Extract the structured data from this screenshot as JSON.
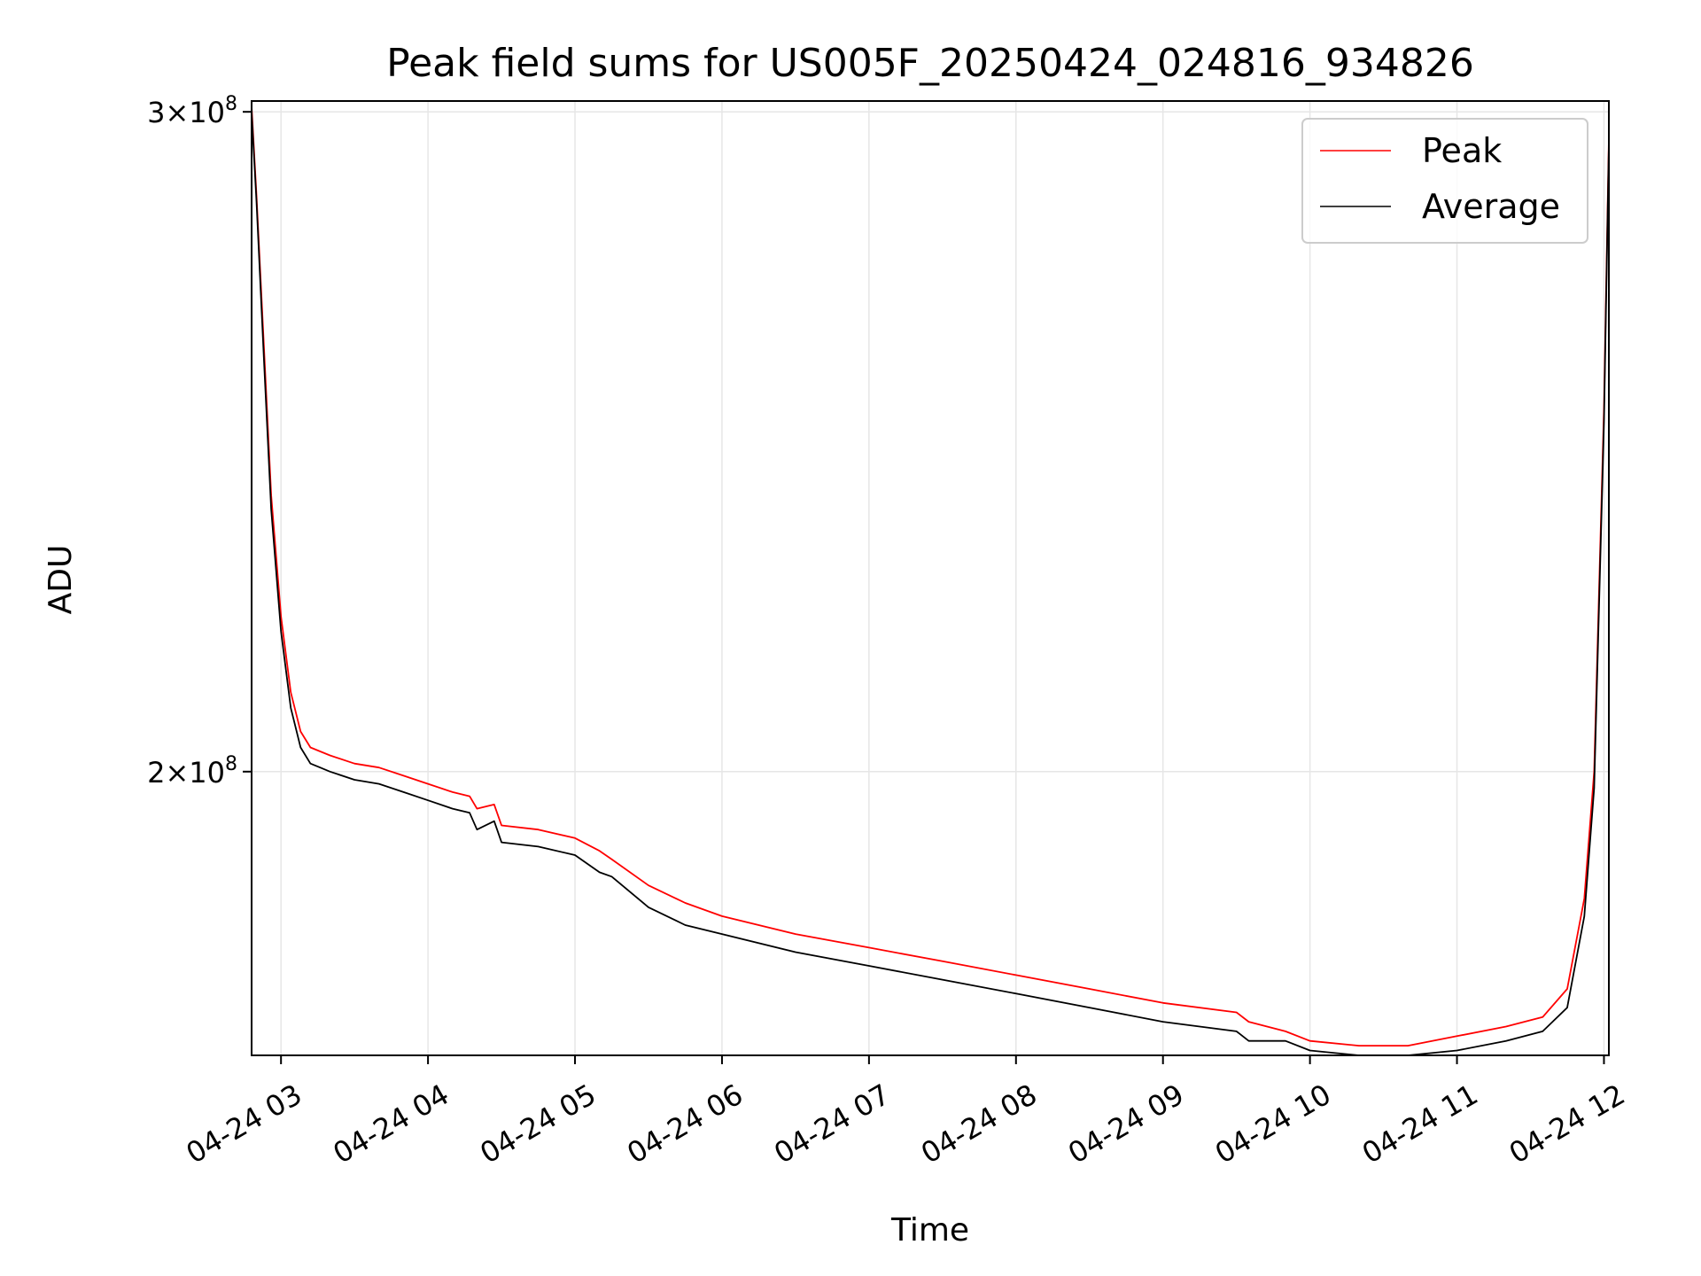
{
  "chart_data": {
    "type": "line",
    "title": "Peak field sums for US005F_20250424_024816_934826",
    "xlabel": "Time",
    "ylabel": "ADU",
    "y_scale": "log",
    "xlim": [
      "2025-04-24 02:48",
      "2025-04-24 12:02"
    ],
    "ylim": [
      168000000,
      302000000
    ],
    "grid": true,
    "legend_position": "top-right",
    "x_ticks": [
      "04-24 03",
      "04-24 04",
      "04-24 05",
      "04-24 06",
      "04-24 07",
      "04-24 08",
      "04-24 09",
      "04-24 10",
      "04-24 11",
      "04-24 12"
    ],
    "x_tick_times": [
      "2025-04-24 03:00",
      "2025-04-24 04:00",
      "2025-04-24 05:00",
      "2025-04-24 06:00",
      "2025-04-24 07:00",
      "2025-04-24 08:00",
      "2025-04-24 09:00",
      "2025-04-24 10:00",
      "2025-04-24 11:00",
      "2025-04-24 12:00"
    ],
    "y_ticks": [
      {
        "value": 300000000,
        "base": "3",
        "exp": "8"
      },
      {
        "value": 200000000,
        "base": "2",
        "exp": "8"
      }
    ],
    "series": [
      {
        "name": "Peak",
        "color": "#ff0000",
        "x": [
          "2025-04-24 02:48",
          "2025-04-24 02:50",
          "2025-04-24 02:53",
          "2025-04-24 02:56",
          "2025-04-24 03:00",
          "2025-04-24 03:04",
          "2025-04-24 03:08",
          "2025-04-24 03:12",
          "2025-04-24 03:16",
          "2025-04-24 03:20",
          "2025-04-24 03:30",
          "2025-04-24 03:40",
          "2025-04-24 03:50",
          "2025-04-24 04:00",
          "2025-04-24 04:10",
          "2025-04-24 04:17",
          "2025-04-24 04:20",
          "2025-04-24 04:27",
          "2025-04-24 04:30",
          "2025-04-24 04:45",
          "2025-04-24 05:00",
          "2025-04-24 05:10",
          "2025-04-24 05:15",
          "2025-04-24 05:30",
          "2025-04-24 05:45",
          "2025-04-24 06:00",
          "2025-04-24 06:30",
          "2025-04-24 07:00",
          "2025-04-24 07:30",
          "2025-04-24 08:00",
          "2025-04-24 08:30",
          "2025-04-24 09:00",
          "2025-04-24 09:30",
          "2025-04-24 09:35",
          "2025-04-24 09:50",
          "2025-04-24 10:00",
          "2025-04-24 10:20",
          "2025-04-24 10:40",
          "2025-04-24 11:00",
          "2025-04-24 11:20",
          "2025-04-24 11:35",
          "2025-04-24 11:45",
          "2025-04-24 11:52",
          "2025-04-24 11:56",
          "2025-04-24 12:00",
          "2025-04-24 12:02"
        ],
        "values": [
          301000000,
          285000000,
          260000000,
          237000000,
          220000000,
          210000000,
          205000000,
          203000000,
          202500000,
          202000000,
          201000000,
          200500000,
          199500000,
          198500000,
          197500000,
          197000000,
          195500000,
          196000000,
          193500000,
          193000000,
          192000000,
          190500000,
          189500000,
          186500000,
          184500000,
          183000000,
          181000000,
          179500000,
          178000000,
          176500000,
          175000000,
          173500000,
          172500000,
          171500000,
          170500000,
          169500000,
          169000000,
          169000000,
          170000000,
          171000000,
          172000000,
          175000000,
          185000000,
          200000000,
          250000000,
          295000000
        ]
      },
      {
        "name": "Average",
        "color": "#000000",
        "x": [
          "2025-04-24 02:48",
          "2025-04-24 02:50",
          "2025-04-24 02:53",
          "2025-04-24 02:56",
          "2025-04-24 03:00",
          "2025-04-24 03:04",
          "2025-04-24 03:08",
          "2025-04-24 03:12",
          "2025-04-24 03:16",
          "2025-04-24 03:20",
          "2025-04-24 03:30",
          "2025-04-24 03:40",
          "2025-04-24 03:50",
          "2025-04-24 04:00",
          "2025-04-24 04:10",
          "2025-04-24 04:17",
          "2025-04-24 04:20",
          "2025-04-24 04:27",
          "2025-04-24 04:30",
          "2025-04-24 04:45",
          "2025-04-24 05:00",
          "2025-04-24 05:10",
          "2025-04-24 05:15",
          "2025-04-24 05:30",
          "2025-04-24 05:45",
          "2025-04-24 06:00",
          "2025-04-24 06:30",
          "2025-04-24 07:00",
          "2025-04-24 07:30",
          "2025-04-24 08:00",
          "2025-04-24 08:30",
          "2025-04-24 09:00",
          "2025-04-24 09:30",
          "2025-04-24 09:35",
          "2025-04-24 09:50",
          "2025-04-24 10:00",
          "2025-04-24 10:20",
          "2025-04-24 10:40",
          "2025-04-24 11:00",
          "2025-04-24 11:20",
          "2025-04-24 11:35",
          "2025-04-24 11:45",
          "2025-04-24 11:52",
          "2025-04-24 11:56",
          "2025-04-24 12:00",
          "2025-04-24 12:02"
        ],
        "values": [
          300000000,
          284000000,
          258000000,
          235000000,
          218000000,
          208000000,
          203000000,
          201000000,
          200500000,
          200000000,
          199000000,
          198500000,
          197500000,
          196500000,
          195500000,
          195000000,
          193000000,
          194000000,
          191500000,
          191000000,
          190000000,
          188000000,
          187500000,
          184000000,
          182000000,
          181000000,
          179000000,
          177500000,
          176000000,
          174500000,
          173000000,
          171500000,
          170500000,
          169500000,
          169500000,
          168500000,
          168000000,
          168000000,
          168500000,
          169500000,
          170500000,
          173000000,
          183000000,
          198000000,
          248000000,
          294000000
        ]
      }
    ]
  }
}
